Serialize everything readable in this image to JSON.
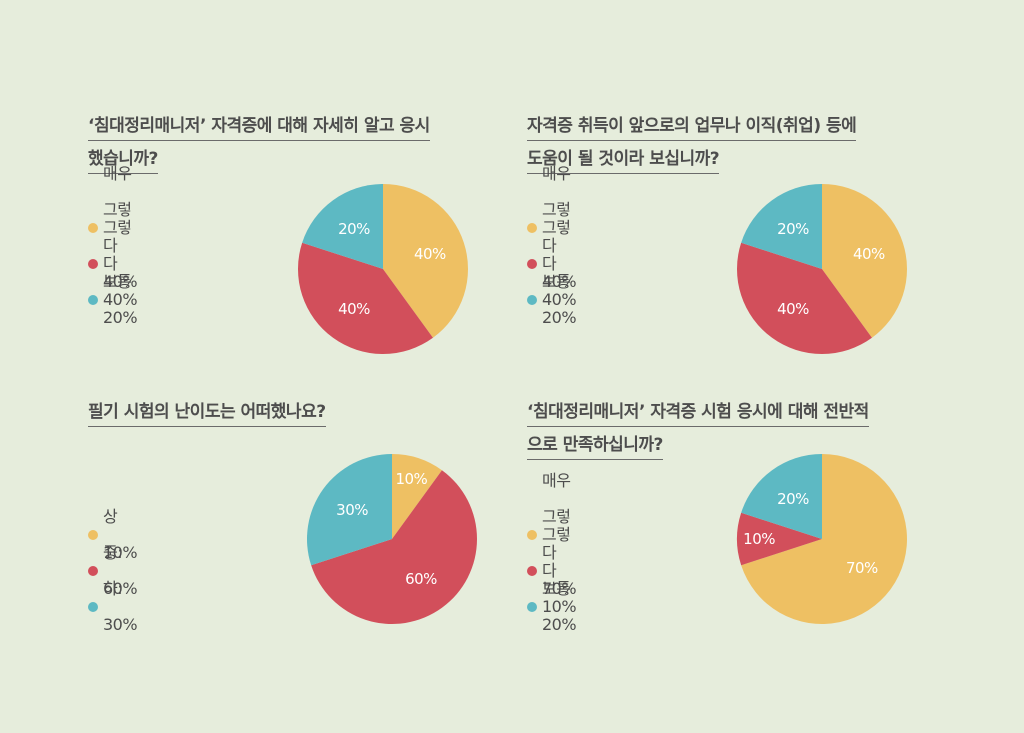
{
  "colors": {
    "very_yes": "#eec063",
    "yes": "#d24f5b",
    "normal": "#5db9c3"
  },
  "chart_data": [
    {
      "type": "pie",
      "title_lines": [
        "‘침대정리매니저’ 자격증에 대해 자세히 알고 응시",
        "했습니까?"
      ],
      "slices": [
        {
          "label": "매우 그렇다",
          "legend": "매우 그렇다 40%",
          "value": 40,
          "text": "40%",
          "color": "#eec063"
        },
        {
          "label": "그렇다",
          "legend": "그렇다 40%",
          "value": 40,
          "text": "40%",
          "color": "#d24f5b"
        },
        {
          "label": "보통",
          "legend": "보통 20%",
          "value": 20,
          "text": "20%",
          "color": "#5db9c3"
        }
      ]
    },
    {
      "type": "pie",
      "title_lines": [
        "자격증 취득이 앞으로의 업무나 이직(취업) 등에",
        "도움이 될 것이라 보십니까?"
      ],
      "slices": [
        {
          "label": "매우 그렇다",
          "legend": "매우 그렇다 40%",
          "value": 40,
          "text": "40%",
          "color": "#eec063"
        },
        {
          "label": "그렇다",
          "legend": "그렇다 40%",
          "value": 40,
          "text": "40%",
          "color": "#d24f5b"
        },
        {
          "label": "보통",
          "legend": "보통 20%",
          "value": 20,
          "text": "20%",
          "color": "#5db9c3"
        }
      ]
    },
    {
      "type": "pie",
      "title_lines": [
        "필기 시험의 난이도는 어떠했나요?"
      ],
      "slices": [
        {
          "label": "상",
          "legend": "상 10%",
          "value": 10,
          "text": "10%",
          "color": "#eec063"
        },
        {
          "label": "중",
          "legend": "중: 60%",
          "value": 60,
          "text": "60%",
          "color": "#d24f5b"
        },
        {
          "label": "하",
          "legend": "하: 30%",
          "value": 30,
          "text": "30%",
          "color": "#5db9c3"
        }
      ]
    },
    {
      "type": "pie",
      "title_lines": [
        "‘침대정리매니저’ 자격증 시험 응시에 대해 전반적",
        "으로 만족하십니까?"
      ],
      "slices": [
        {
          "label": "매우 그렇다",
          "legend": "매우 그렇다 70%",
          "value": 70,
          "text": "70%",
          "color": "#eec063"
        },
        {
          "label": "그렇다",
          "legend": "그렇다 10%",
          "value": 10,
          "text": "10%",
          "color": "#d24f5b"
        },
        {
          "label": "보통",
          "legend": "보통 20%",
          "value": 20,
          "text": "20%",
          "color": "#5db9c3"
        }
      ]
    }
  ]
}
